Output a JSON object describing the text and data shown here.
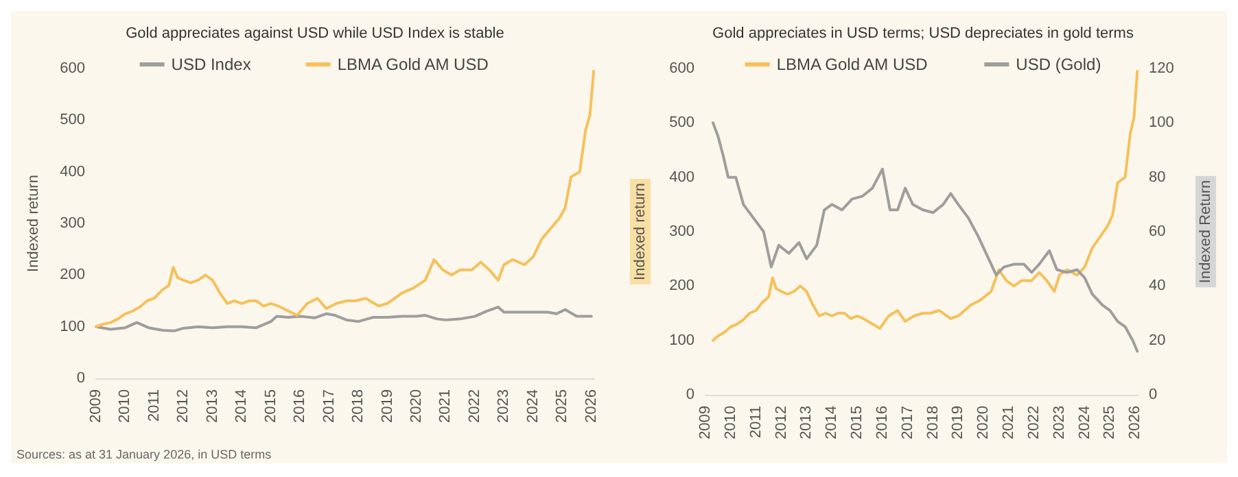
{
  "chart_data": [
    {
      "type": "line",
      "title": "Gold appreciates against USD while USD Index is stable",
      "ylabel": "Indexed return",
      "xlim": [
        2009,
        2026.1
      ],
      "xticks": [
        2009,
        2010,
        2011,
        2012,
        2013,
        2014,
        2015,
        2016,
        2017,
        2018,
        2019,
        2020,
        2021,
        2022,
        2023,
        2024,
        2025,
        2026
      ],
      "ylim": [
        0,
        600
      ],
      "yticks": [
        0,
        100,
        200,
        300,
        400,
        500,
        600
      ],
      "legend": "top",
      "grid": false,
      "annotations": [
        "Sources: as at 31 January 2026, in USD terms"
      ],
      "series": [
        {
          "name": "USD Index",
          "color": "#9e9e9e",
          "x": [
            2009,
            2009.5,
            2010,
            2010.4,
            2010.8,
            2011.3,
            2011.7,
            2012,
            2012.5,
            2013,
            2013.5,
            2014,
            2014.5,
            2015,
            2015.2,
            2015.6,
            2016,
            2016.5,
            2016.9,
            2017.2,
            2017.6,
            2018,
            2018.5,
            2019,
            2019.5,
            2020,
            2020.3,
            2020.7,
            2021,
            2021.5,
            2022,
            2022.4,
            2022.8,
            2023,
            2023.5,
            2024,
            2024.5,
            2024.8,
            2025.1,
            2025.5,
            2026
          ],
          "values": [
            100,
            95,
            98,
            108,
            98,
            93,
            92,
            97,
            100,
            98,
            100,
            100,
            98,
            110,
            120,
            118,
            120,
            117,
            125,
            122,
            113,
            110,
            118,
            118,
            120,
            120,
            122,
            115,
            113,
            115,
            120,
            130,
            138,
            128,
            128,
            128,
            128,
            125,
            133,
            120,
            120
          ]
        },
        {
          "name": "LBMA Gold AM USD",
          "color": "#f5c15c",
          "x": [
            2009,
            2009.25,
            2009.5,
            2009.75,
            2010,
            2010.25,
            2010.5,
            2010.75,
            2011,
            2011.25,
            2011.5,
            2011.65,
            2011.8,
            2012,
            2012.25,
            2012.5,
            2012.75,
            2013,
            2013.25,
            2013.5,
            2013.75,
            2014,
            2014.25,
            2014.5,
            2014.75,
            2015,
            2015.25,
            2015.5,
            2015.9,
            2016.25,
            2016.6,
            2016.9,
            2017.25,
            2017.6,
            2017.9,
            2018.25,
            2018.7,
            2019,
            2019.5,
            2019.9,
            2020.3,
            2020.6,
            2020.9,
            2021.2,
            2021.5,
            2021.9,
            2022.2,
            2022.5,
            2022.8,
            2023,
            2023.3,
            2023.7,
            2024,
            2024.3,
            2024.6,
            2024.9,
            2025.1,
            2025.3,
            2025.6,
            2025.8,
            2025.95,
            2026.08
          ],
          "values": [
            100,
            105,
            108,
            115,
            125,
            130,
            138,
            150,
            155,
            170,
            180,
            215,
            195,
            190,
            185,
            190,
            200,
            190,
            165,
            145,
            150,
            145,
            150,
            150,
            140,
            145,
            140,
            133,
            122,
            145,
            155,
            135,
            145,
            150,
            150,
            155,
            140,
            145,
            165,
            175,
            190,
            230,
            210,
            200,
            210,
            210,
            225,
            210,
            190,
            220,
            230,
            220,
            235,
            270,
            290,
            310,
            330,
            390,
            400,
            480,
            510,
            595
          ]
        }
      ]
    },
    {
      "type": "line",
      "title": "Gold appreciates in USD terms; USD depreciates in gold terms",
      "ylabel": "Indexed return",
      "y2label": "Indexed Return",
      "xlim": [
        2009,
        2026.1
      ],
      "xticks": [
        2009,
        2010,
        2011,
        2012,
        2013,
        2014,
        2015,
        2016,
        2017,
        2018,
        2019,
        2020,
        2021,
        2022,
        2023,
        2024,
        2025,
        2026
      ],
      "ylim": [
        0,
        600
      ],
      "yticks": [
        0,
        100,
        200,
        300,
        400,
        500,
        600
      ],
      "y2lim": [
        0,
        120
      ],
      "y2ticks": [
        0,
        20,
        40,
        60,
        80,
        100,
        120
      ],
      "legend": "top",
      "grid": false,
      "series": [
        {
          "name": "LBMA Gold AM USD",
          "color": "#f5c15c",
          "x": [
            2009.3,
            2009.5,
            2009.75,
            2010,
            2010.25,
            2010.5,
            2010.75,
            2011,
            2011.25,
            2011.5,
            2011.65,
            2011.8,
            2012,
            2012.25,
            2012.5,
            2012.75,
            2013,
            2013.25,
            2013.5,
            2013.75,
            2014,
            2014.25,
            2014.5,
            2014.75,
            2015,
            2015.25,
            2015.5,
            2015.9,
            2016.25,
            2016.6,
            2016.9,
            2017.25,
            2017.6,
            2017.9,
            2018.25,
            2018.7,
            2019,
            2019.5,
            2019.9,
            2020.3,
            2020.6,
            2020.9,
            2021.2,
            2021.5,
            2021.9,
            2022.2,
            2022.5,
            2022.8,
            2023,
            2023.3,
            2023.7,
            2024,
            2024.3,
            2024.6,
            2024.9,
            2025.1,
            2025.3,
            2025.6,
            2025.8,
            2025.95,
            2026.08
          ],
          "values": [
            100,
            108,
            115,
            125,
            130,
            138,
            150,
            155,
            170,
            180,
            215,
            195,
            190,
            185,
            190,
            200,
            190,
            165,
            145,
            150,
            145,
            150,
            150,
            140,
            145,
            140,
            133,
            122,
            145,
            155,
            135,
            145,
            150,
            150,
            155,
            140,
            145,
            165,
            175,
            190,
            230,
            210,
            200,
            210,
            210,
            225,
            210,
            190,
            220,
            230,
            220,
            235,
            270,
            290,
            310,
            330,
            390,
            400,
            480,
            510,
            595
          ]
        },
        {
          "name": "USD (Gold)",
          "color": "#9e9e9e",
          "axis": "y2",
          "x": [
            2009.3,
            2009.5,
            2009.7,
            2009.9,
            2010.2,
            2010.5,
            2010.9,
            2011.3,
            2011.6,
            2011.9,
            2012.3,
            2012.7,
            2013,
            2013.4,
            2013.7,
            2014,
            2014.4,
            2014.8,
            2015.2,
            2015.6,
            2016,
            2016.3,
            2016.6,
            2016.9,
            2017.2,
            2017.6,
            2018,
            2018.4,
            2018.7,
            2019,
            2019.4,
            2019.8,
            2020.2,
            2020.5,
            2020.8,
            2021.2,
            2021.6,
            2021.9,
            2022.2,
            2022.6,
            2022.9,
            2023.3,
            2023.7,
            2024,
            2024.3,
            2024.7,
            2025,
            2025.3,
            2025.6,
            2025.9,
            2026.08
          ],
          "values": [
            100,
            95,
            88,
            80,
            80,
            70,
            65,
            60,
            47,
            55,
            52,
            56,
            50,
            55,
            68,
            70,
            68,
            72,
            73,
            76,
            83,
            68,
            68,
            76,
            70,
            68,
            67,
            70,
            74,
            70,
            65,
            58,
            50,
            44,
            47,
            48,
            48,
            45,
            48,
            53,
            46,
            45,
            46,
            43,
            37,
            33,
            31,
            27,
            25,
            20,
            16
          ]
        }
      ]
    }
  ]
}
